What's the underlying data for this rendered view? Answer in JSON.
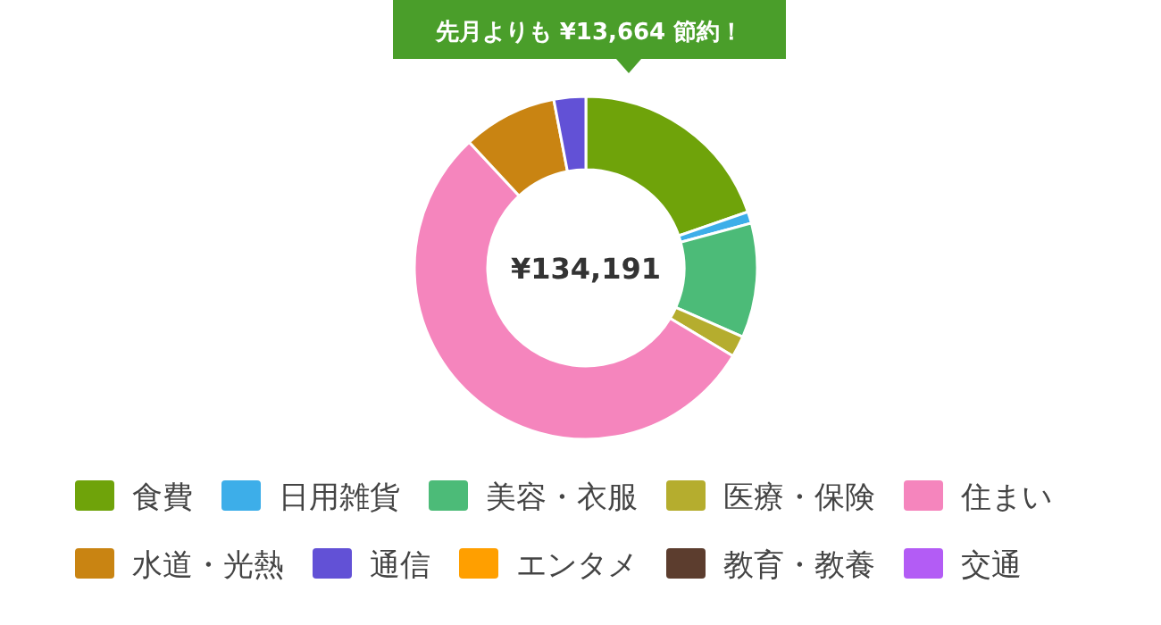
{
  "chart_data": {
    "type": "donut",
    "title": "先月よりも ¥13,664 節約！",
    "annotations": [
      "¥134,191"
    ],
    "categories": [
      "食費",
      "日用雑貨",
      "美容・衣服",
      "医療・保険",
      "住まい",
      "水道・光熱",
      "通信",
      "エンタメ",
      "教育・教養",
      "交通"
    ],
    "values": [
      19.7,
      1.1,
      10.8,
      2.0,
      54.5,
      8.9,
      3.0,
      0,
      0,
      0
    ],
    "colors": [
      "#6fa30a",
      "#3daee9",
      "#4cbb78",
      "#b5ad2e",
      "#f585bd",
      "#c98412",
      "#6251d6",
      "#ff9f00",
      "#5c3d2e",
      "#b35cf5"
    ],
    "legend": "bottom"
  }
}
